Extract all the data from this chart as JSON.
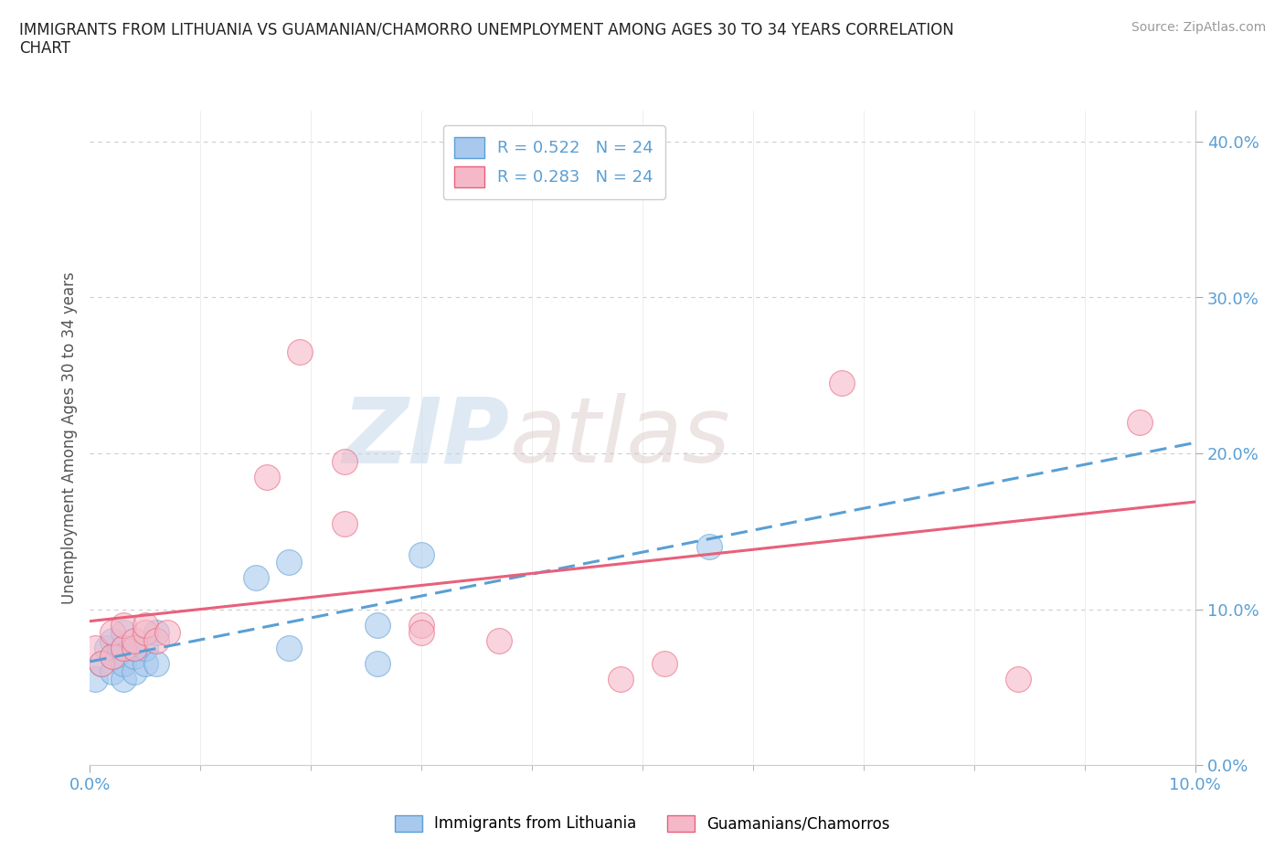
{
  "title": "IMMIGRANTS FROM LITHUANIA VS GUAMANIAN/CHAMORRO UNEMPLOYMENT AMONG AGES 30 TO 34 YEARS CORRELATION\nCHART",
  "source": "Source: ZipAtlas.com",
  "ylabel": "Unemployment Among Ages 30 to 34 years",
  "xmin": 0.0,
  "xmax": 0.1,
  "ymin": 0.0,
  "ymax": 0.42,
  "yticks": [
    0.0,
    0.1,
    0.2,
    0.3,
    0.4
  ],
  "ytick_labels": [
    "0.0%",
    "10.0%",
    "20.0%",
    "30.0%",
    "40.0%"
  ],
  "legend_r1": "R = 0.522",
  "legend_n1": "N = 24",
  "legend_r2": "R = 0.283",
  "legend_n2": "N = 24",
  "blue_color": "#A8C8EE",
  "pink_color": "#F5B8C8",
  "line_blue": "#5A9FD4",
  "line_pink": "#E8607A",
  "background_color": "#FFFFFF",
  "watermark_zip": "ZIP",
  "watermark_atlas": "atlas",
  "lithuania_x": [
    0.0005,
    0.001,
    0.0015,
    0.002,
    0.002,
    0.002,
    0.003,
    0.003,
    0.003,
    0.003,
    0.004,
    0.004,
    0.004,
    0.005,
    0.005,
    0.006,
    0.006,
    0.015,
    0.018,
    0.018,
    0.026,
    0.026,
    0.03,
    0.056
  ],
  "lithuania_y": [
    0.055,
    0.065,
    0.075,
    0.06,
    0.07,
    0.08,
    0.055,
    0.065,
    0.075,
    0.085,
    0.06,
    0.07,
    0.075,
    0.065,
    0.075,
    0.065,
    0.085,
    0.12,
    0.13,
    0.075,
    0.09,
    0.065,
    0.135,
    0.14
  ],
  "chamorro_x": [
    0.0005,
    0.001,
    0.002,
    0.002,
    0.003,
    0.003,
    0.004,
    0.004,
    0.005,
    0.005,
    0.006,
    0.007,
    0.016,
    0.019,
    0.023,
    0.023,
    0.03,
    0.03,
    0.037,
    0.048,
    0.052,
    0.068,
    0.084,
    0.095
  ],
  "chamorro_y": [
    0.075,
    0.065,
    0.07,
    0.085,
    0.075,
    0.09,
    0.075,
    0.08,
    0.085,
    0.09,
    0.08,
    0.085,
    0.185,
    0.265,
    0.195,
    0.155,
    0.09,
    0.085,
    0.08,
    0.055,
    0.065,
    0.245,
    0.055,
    0.22
  ]
}
